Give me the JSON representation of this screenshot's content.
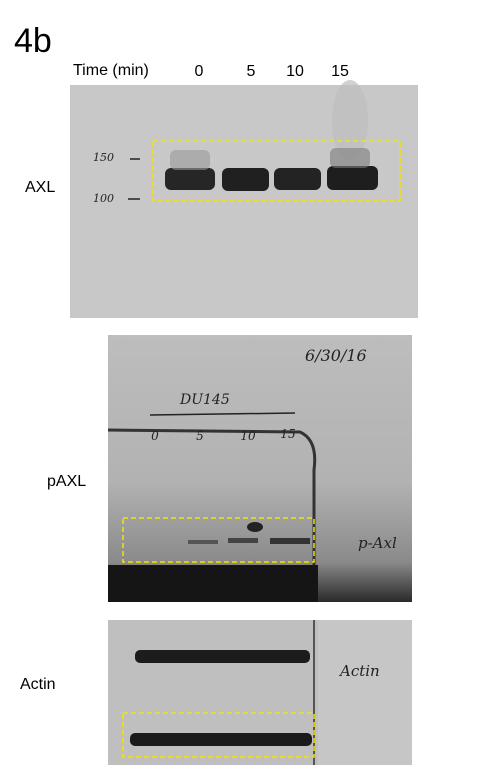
{
  "figure_label": "4b",
  "time_header": {
    "label": "Time (min)",
    "times": [
      "0",
      "5",
      "10",
      "15"
    ]
  },
  "blots": [
    {
      "label": "AXL",
      "annotations": [
        "150",
        "100"
      ]
    },
    {
      "label": "pAXL",
      "annotations": [
        "6/30/16",
        "DU145",
        "0",
        "5",
        "10",
        "15",
        "p-Axl"
      ]
    },
    {
      "label": "Actin",
      "annotations": [
        "Actin"
      ]
    }
  ]
}
